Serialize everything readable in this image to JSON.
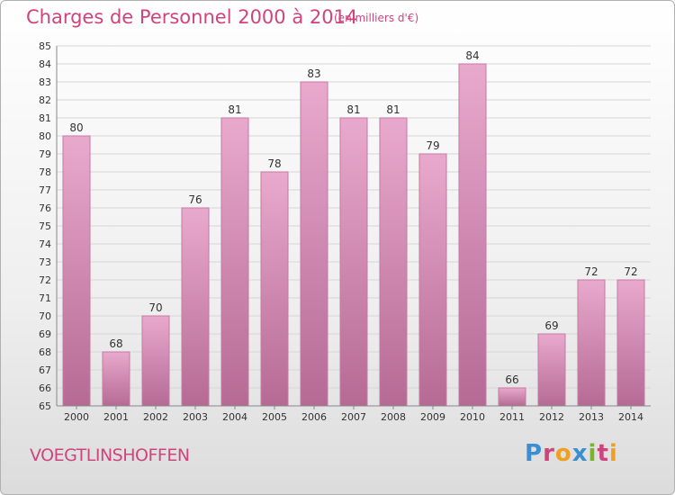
{
  "header": {
    "title": "Charges de Personnel 2000 à 2014",
    "subtitle": "(en milliers d'€)"
  },
  "footer": {
    "commune": "VOEGTLINSHOFFEN",
    "logo": "Proxiti",
    "logo_colors": [
      "#3a8fd4",
      "#d0447e",
      "#f0a020",
      "#3a8fd4",
      "#7ab32e",
      "#d0447e",
      "#f0a020"
    ]
  },
  "colors": {
    "title": "#d0447e",
    "bar_top": "#e9a9cd",
    "bar_bottom": "#b56a94",
    "bar_edge": "#c47aa2"
  },
  "chart_data": {
    "type": "bar",
    "title": "Charges de Personnel 2000 à 2014",
    "subtitle": "(en milliers d'€)",
    "categories": [
      "2000",
      "2001",
      "2002",
      "2003",
      "2004",
      "2005",
      "2006",
      "2007",
      "2008",
      "2009",
      "2010",
      "2011",
      "2012",
      "2013",
      "2014"
    ],
    "values": [
      80,
      68,
      70,
      76,
      81,
      78,
      83,
      81,
      81,
      79,
      84,
      66,
      69,
      72,
      72
    ],
    "ylim": [
      65,
      85
    ],
    "yticks": [
      65,
      66,
      67,
      68,
      69,
      70,
      71,
      72,
      73,
      74,
      75,
      76,
      77,
      78,
      79,
      80,
      81,
      82,
      83,
      84,
      85
    ],
    "grid": true,
    "data_labels": true
  }
}
